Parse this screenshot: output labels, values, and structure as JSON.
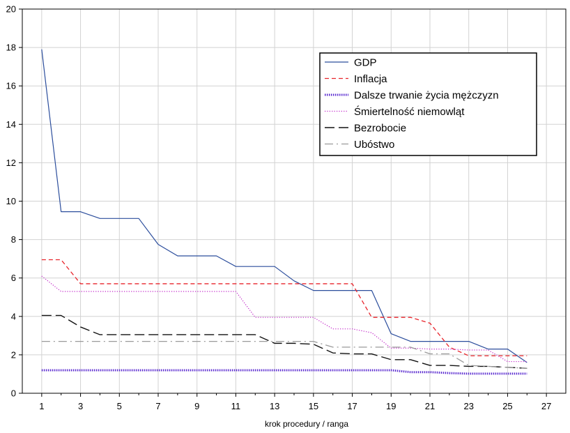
{
  "chart_data": {
    "type": "line",
    "xlabel": "krok procedury / ranga",
    "ylabel": "",
    "xlim": [
      0,
      28
    ],
    "ylim": [
      0,
      20
    ],
    "x_ticks": [
      1,
      3,
      5,
      7,
      9,
      11,
      13,
      15,
      17,
      19,
      21,
      23,
      25,
      27
    ],
    "y_ticks": [
      0,
      2,
      4,
      6,
      8,
      10,
      12,
      14,
      16,
      18,
      20
    ],
    "grid": true,
    "legend_position": "top-right",
    "x": [
      1,
      2,
      3,
      4,
      5,
      6,
      7,
      8,
      9,
      10,
      11,
      12,
      13,
      14,
      15,
      16,
      17,
      18,
      19,
      20,
      21,
      22,
      23,
      24,
      25,
      26
    ],
    "series": [
      {
        "name": "GDP",
        "color": "#2b4d9c",
        "dash": "solid",
        "values": [
          17.9,
          9.45,
          9.45,
          9.1,
          9.1,
          9.1,
          7.75,
          7.15,
          7.15,
          7.15,
          6.6,
          6.6,
          6.6,
          5.85,
          5.35,
          5.35,
          5.35,
          5.35,
          3.1,
          2.7,
          2.7,
          2.7,
          2.7,
          2.3,
          2.3,
          1.6
        ]
      },
      {
        "name": "Inflacja",
        "color": "#e8242b",
        "dash": "dashed",
        "values": [
          6.95,
          6.95,
          5.7,
          5.7,
          5.7,
          5.7,
          5.7,
          5.7,
          5.7,
          5.7,
          5.7,
          5.7,
          5.7,
          5.7,
          5.7,
          5.7,
          5.7,
          3.95,
          3.95,
          3.95,
          3.65,
          2.4,
          1.95,
          1.95,
          1.95,
          1.95
        ]
      },
      {
        "name": "Dalsze trwanie życia mężczyzn",
        "color": "#5a2bd0",
        "dash": "dotted-thick",
        "values": [
          1.2,
          1.2,
          1.2,
          1.2,
          1.2,
          1.2,
          1.2,
          1.2,
          1.2,
          1.2,
          1.2,
          1.2,
          1.2,
          1.2,
          1.2,
          1.2,
          1.2,
          1.2,
          1.2,
          1.1,
          1.1,
          1.05,
          1.02,
          1.02,
          1.02,
          1.02
        ]
      },
      {
        "name": "Śmiertelność niemowląt",
        "color": "#c020c8",
        "dash": "dotted",
        "values": [
          6.1,
          5.3,
          5.3,
          5.3,
          5.3,
          5.3,
          5.3,
          5.3,
          5.3,
          5.3,
          5.3,
          3.95,
          3.95,
          3.95,
          3.95,
          3.35,
          3.35,
          3.15,
          2.35,
          2.35,
          2.3,
          2.3,
          2.25,
          2.25,
          1.65,
          1.65
        ]
      },
      {
        "name": "Bezrobocie",
        "color": "#111111",
        "dash": "longdash",
        "values": [
          4.05,
          4.05,
          3.45,
          3.05,
          3.05,
          3.05,
          3.05,
          3.05,
          3.05,
          3.05,
          3.05,
          3.05,
          2.6,
          2.6,
          2.55,
          2.1,
          2.05,
          2.05,
          1.75,
          1.75,
          1.45,
          1.45,
          1.4,
          1.4,
          1.35,
          1.3
        ]
      },
      {
        "name": "Ubóstwo",
        "color": "#9a9a9a",
        "dash": "dashdot",
        "values": [
          2.7,
          2.7,
          2.7,
          2.7,
          2.7,
          2.7,
          2.7,
          2.7,
          2.7,
          2.7,
          2.7,
          2.7,
          2.7,
          2.7,
          2.7,
          2.4,
          2.4,
          2.4,
          2.4,
          2.4,
          2.05,
          2.05,
          1.45,
          1.4,
          1.35,
          1.3
        ]
      }
    ]
  }
}
